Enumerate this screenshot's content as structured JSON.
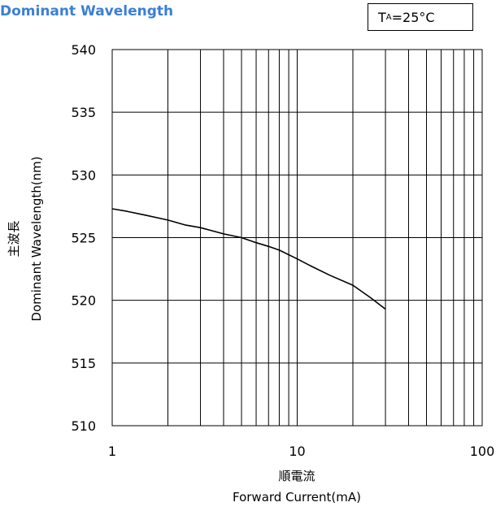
{
  "header": {
    "title": "Dominant Wavelength",
    "condition": {
      "symbol": "T",
      "subscript": "A",
      "value": "=25°C"
    }
  },
  "chart_data": {
    "type": "line",
    "xscale": "log",
    "xlim": [
      1,
      100
    ],
    "ylim": [
      510,
      540
    ],
    "xticks": [
      1,
      10,
      100
    ],
    "xtick_labels": [
      "1",
      "10",
      "100"
    ],
    "yticks": [
      510,
      515,
      520,
      525,
      530,
      535,
      540
    ],
    "ytick_labels": [
      "510",
      "515",
      "520",
      "525",
      "530",
      "535",
      "540"
    ],
    "xlabel_jp": "順電流",
    "xlabel": "Forward Current(mA)",
    "ylabel_jp": "主波長",
    "ylabel": "Dominant Wavelength(nm)",
    "grid": true,
    "series": [
      {
        "color": "#000000",
        "x": [
          1,
          1.2,
          1.5,
          2,
          2.5,
          3,
          4,
          5,
          6,
          7,
          8,
          10,
          12,
          15,
          20,
          25,
          30
        ],
        "y": [
          527.3,
          527.1,
          526.8,
          526.4,
          526.0,
          525.8,
          525.3,
          525.0,
          524.6,
          524.3,
          524.0,
          523.3,
          522.7,
          522.0,
          521.2,
          520.2,
          519.3
        ]
      }
    ]
  }
}
